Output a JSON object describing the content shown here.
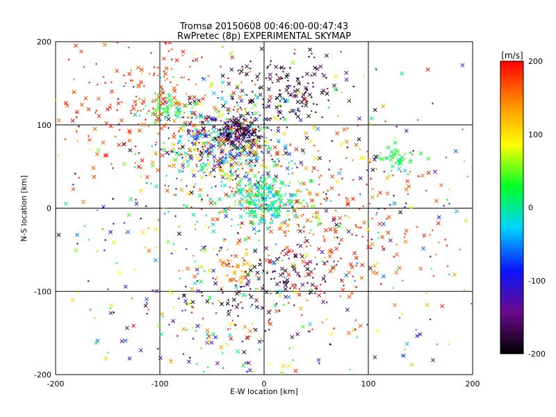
{
  "chart_data": {
    "type": "scatter",
    "title": "Tromsø 20150608 00:46:00-00:47:43",
    "subtitle": "RwPretec (8p) EXPERIMENTAL SKYMAP",
    "xlabel": "E-W location [km]",
    "ylabel": "N-S location [km]",
    "xlim": [
      -200,
      200
    ],
    "ylim": [
      -200,
      200
    ],
    "x_ticks": [
      "-200",
      "-100",
      "0",
      "100",
      "200"
    ],
    "y_ticks": [
      "-200",
      "-100",
      "0",
      "100",
      "200"
    ],
    "grid": true,
    "markers": [
      "x",
      "+",
      "triangle"
    ],
    "colorbar": {
      "label": "[m/s]",
      "min": -200,
      "max": 200,
      "ticks": [
        "200",
        "100",
        "0",
        "-100",
        "-200"
      ],
      "colormap": "black-purple-blue-cyan-green-yellow-orange-red",
      "colors": [
        "#000000",
        "#6a0a8c",
        "#0a14ff",
        "#00d2ff",
        "#00ff28",
        "#ffff00",
        "#ff8c00",
        "#ff0000"
      ]
    },
    "clusters": [
      {
        "x": -40,
        "y": 75,
        "spread": 30,
        "velocity_range": [
          -200,
          200
        ]
      },
      {
        "x": -25,
        "y": 90,
        "spread": 12,
        "velocity_range": [
          -200,
          -120
        ]
      },
      {
        "x": 0,
        "y": 10,
        "spread": 18,
        "velocity_range": [
          -40,
          40
        ]
      },
      {
        "x": 20,
        "y": 140,
        "spread": 25,
        "velocity_range": [
          -200,
          -150
        ]
      },
      {
        "x": 130,
        "y": 60,
        "spread": 8,
        "velocity_range": [
          0,
          40
        ]
      },
      {
        "x": -95,
        "y": 120,
        "spread": 10,
        "velocity_range": [
          0,
          60
        ]
      },
      {
        "x": -30,
        "y": -75,
        "spread": 10,
        "velocity_range": [
          100,
          140
        ]
      },
      {
        "x": 30,
        "y": -80,
        "spread": 20,
        "velocity_range": [
          -200,
          -140
        ]
      },
      {
        "x": 60,
        "y": -20,
        "spread": 60,
        "velocity_range": [
          150,
          200
        ]
      },
      {
        "x": -120,
        "y": 130,
        "spread": 50,
        "velocity_range": [
          150,
          200
        ]
      },
      {
        "x": -50,
        "y": -150,
        "spread": 50,
        "velocity_range": [
          -200,
          200
        ]
      },
      {
        "x": -20,
        "y": -110,
        "spread": 20,
        "velocity_range": [
          -200,
          -150
        ]
      },
      {
        "x": 0,
        "y": 0,
        "spread": 120,
        "velocity_range": [
          -200,
          200
        ]
      }
    ],
    "cluster_counts": [
      520,
      160,
      260,
      160,
      45,
      60,
      30,
      70,
      280,
      230,
      140,
      45,
      650
    ]
  }
}
